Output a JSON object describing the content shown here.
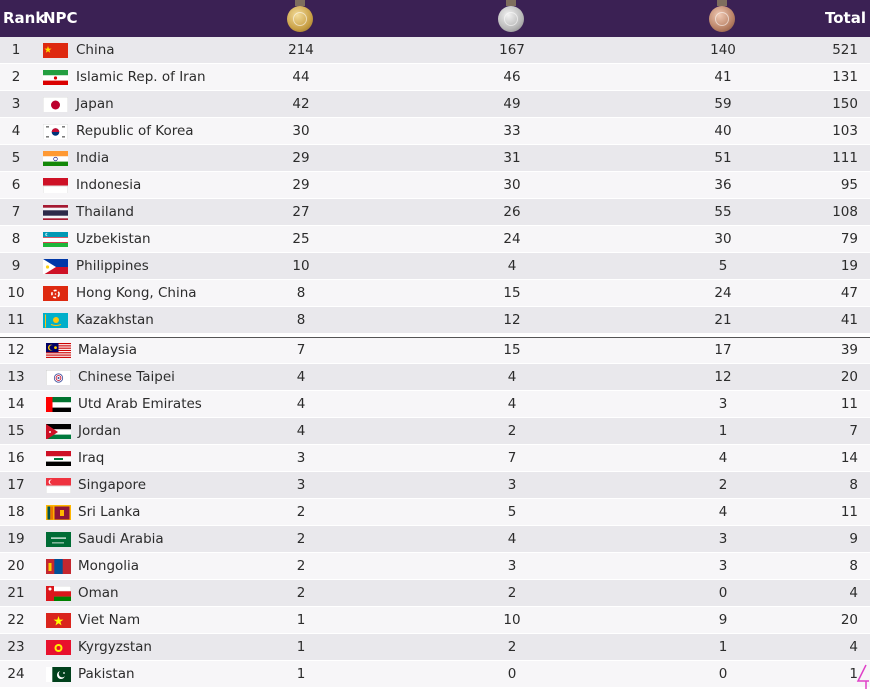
{
  "header": {
    "rank": "Rank",
    "npc": "NPC",
    "gold_icon": "gold-medal-icon",
    "silver_icon": "silver-medal-icon",
    "bronze_icon": "bronze-medal-icon",
    "total": "Total",
    "color": "#3b2154"
  },
  "rows": [
    {
      "rank": "1",
      "name": "China",
      "flag": "china-flag-icon",
      "gold": "214",
      "silver": "167",
      "bronze": "140",
      "total": "521"
    },
    {
      "rank": "2",
      "name": "Islamic Rep. of Iran",
      "flag": "iran-flag-icon",
      "gold": "44",
      "silver": "46",
      "bronze": "41",
      "total": "131"
    },
    {
      "rank": "3",
      "name": "Japan",
      "flag": "japan-flag-icon",
      "gold": "42",
      "silver": "49",
      "bronze": "59",
      "total": "150"
    },
    {
      "rank": "4",
      "name": "Republic of Korea",
      "flag": "korea-flag-icon",
      "gold": "30",
      "silver": "33",
      "bronze": "40",
      "total": "103"
    },
    {
      "rank": "5",
      "name": "India",
      "flag": "india-flag-icon",
      "gold": "29",
      "silver": "31",
      "bronze": "51",
      "total": "111"
    },
    {
      "rank": "6",
      "name": "Indonesia",
      "flag": "indonesia-flag-icon",
      "gold": "29",
      "silver": "30",
      "bronze": "36",
      "total": "95"
    },
    {
      "rank": "7",
      "name": "Thailand",
      "flag": "thailand-flag-icon",
      "gold": "27",
      "silver": "26",
      "bronze": "55",
      "total": "108"
    },
    {
      "rank": "8",
      "name": "Uzbekistan",
      "flag": "uzbekistan-flag-icon",
      "gold": "25",
      "silver": "24",
      "bronze": "30",
      "total": "79"
    },
    {
      "rank": "9",
      "name": "Philippines",
      "flag": "philippines-flag-icon",
      "gold": "10",
      "silver": "4",
      "bronze": "5",
      "total": "19"
    },
    {
      "rank": "10",
      "name": "Hong Kong, China",
      "flag": "hong-kong-flag-icon",
      "gold": "8",
      "silver": "15",
      "bronze": "24",
      "total": "47"
    },
    {
      "rank": "11",
      "name": "Kazakhstan",
      "flag": "kazakhstan-flag-icon",
      "gold": "8",
      "silver": "12",
      "bronze": "21",
      "total": "41"
    },
    {
      "rank": "12",
      "name": "Malaysia",
      "flag": "malaysia-flag-icon",
      "gold": "7",
      "silver": "15",
      "bronze": "17",
      "total": "39"
    },
    {
      "rank": "13",
      "name": "Chinese Taipei",
      "flag": "chinese-taipei-flag-icon",
      "gold": "4",
      "silver": "4",
      "bronze": "12",
      "total": "20"
    },
    {
      "rank": "14",
      "name": "Utd Arab Emirates",
      "flag": "uae-flag-icon",
      "gold": "4",
      "silver": "4",
      "bronze": "3",
      "total": "11"
    },
    {
      "rank": "15",
      "name": "Jordan",
      "flag": "jordan-flag-icon",
      "gold": "4",
      "silver": "2",
      "bronze": "1",
      "total": "7"
    },
    {
      "rank": "16",
      "name": "Iraq",
      "flag": "iraq-flag-icon",
      "gold": "3",
      "silver": "7",
      "bronze": "4",
      "total": "14"
    },
    {
      "rank": "17",
      "name": "Singapore",
      "flag": "singapore-flag-icon",
      "gold": "3",
      "silver": "3",
      "bronze": "2",
      "total": "8"
    },
    {
      "rank": "18",
      "name": "Sri Lanka",
      "flag": "sri-lanka-flag-icon",
      "gold": "2",
      "silver": "5",
      "bronze": "4",
      "total": "11"
    },
    {
      "rank": "19",
      "name": "Saudi Arabia",
      "flag": "saudi-arabia-flag-icon",
      "gold": "2",
      "silver": "4",
      "bronze": "3",
      "total": "9"
    },
    {
      "rank": "20",
      "name": "Mongolia",
      "flag": "mongolia-flag-icon",
      "gold": "2",
      "silver": "3",
      "bronze": "3",
      "total": "8"
    },
    {
      "rank": "21",
      "name": "Oman",
      "flag": "oman-flag-icon",
      "gold": "2",
      "silver": "2",
      "bronze": "0",
      "total": "4"
    },
    {
      "rank": "22",
      "name": "Viet Nam",
      "flag": "viet-nam-flag-icon",
      "gold": "1",
      "silver": "10",
      "bronze": "9",
      "total": "20"
    },
    {
      "rank": "23",
      "name": "Kyrgyzstan",
      "flag": "kyrgyzstan-flag-icon",
      "gold": "1",
      "silver": "2",
      "bronze": "1",
      "total": "4"
    },
    {
      "rank": "24",
      "name": "Pakistan",
      "flag": "pakistan-flag-icon",
      "gold": "1",
      "silver": "0",
      "bronze": "0",
      "total": "1"
    }
  ]
}
